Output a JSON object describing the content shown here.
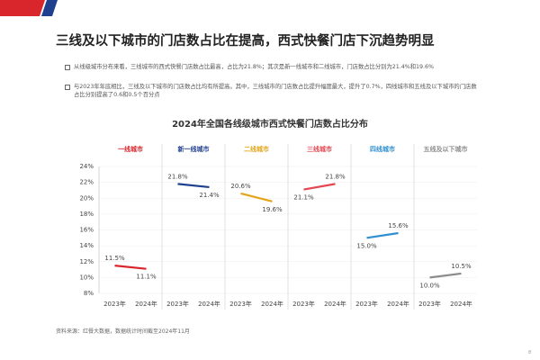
{
  "header": {
    "title": "三线及以下城市的门店数占比在提高，西式快餐门店下沉趋势明显"
  },
  "bullets": [
    "从线级城市分布来看，三线城市的西式快餐门店数占比最高，占比为21.8%；其次是新一线城市和二线城市，门店数占比分别为21.4%和19.6%",
    "与2023年年底相比，三线及以下城市的门店数占比均有所提高。其中，三线城市的门店数占比提升幅度最大，提升了0.7%，四线城市和五线及以下城市的门店数占比分别提高了0.6和0.5个百分点"
  ],
  "chart_data": {
    "type": "line",
    "title": "2024年全国各线级城市西式快餐门店数占比分布",
    "categories": [
      "2023年",
      "2024年"
    ],
    "series": [
      {
        "name": "一线城市",
        "color": "#d9262c",
        "values": [
          11.5,
          11.1
        ],
        "value_labels": [
          "11.5%",
          "11.1%"
        ]
      },
      {
        "name": "新一线城市",
        "color": "#1f3f8f",
        "values": [
          21.8,
          21.4
        ],
        "value_labels": [
          "21.8%",
          "21.4%"
        ]
      },
      {
        "name": "二线城市",
        "color": "#e3a51b",
        "values": [
          20.6,
          19.6
        ],
        "value_labels": [
          "20.6%",
          "19.6%"
        ]
      },
      {
        "name": "三线城市",
        "color": "#e5454f",
        "values": [
          21.1,
          21.8
        ],
        "value_labels": [
          "21.1%",
          "21.8%"
        ]
      },
      {
        "name": "四线城市",
        "color": "#2f8fd0",
        "values": [
          15.0,
          15.6
        ],
        "value_labels": [
          "15.0%",
          "15.6%"
        ]
      },
      {
        "name": "五线及以下城市",
        "color": "#8c8c8c",
        "values": [
          10.0,
          10.5
        ],
        "value_labels": [
          "10.0%",
          "10.5%"
        ]
      }
    ],
    "ylim": [
      8,
      24
    ],
    "yticks": [
      {
        "value": 8,
        "label": "8%"
      },
      {
        "value": 10,
        "label": "10%"
      },
      {
        "value": 12,
        "label": "12%"
      },
      {
        "value": 14,
        "label": "14%"
      },
      {
        "value": 16,
        "label": "16%"
      },
      {
        "value": 18,
        "label": "18%"
      },
      {
        "value": 20,
        "label": "20%"
      },
      {
        "value": 22,
        "label": "22%"
      },
      {
        "value": 24,
        "label": "24%"
      }
    ],
    "grid": true
  },
  "footer": {
    "source": "资料来源：红餐大数据，数据统计时间截至2024年11月",
    "page": "8"
  }
}
